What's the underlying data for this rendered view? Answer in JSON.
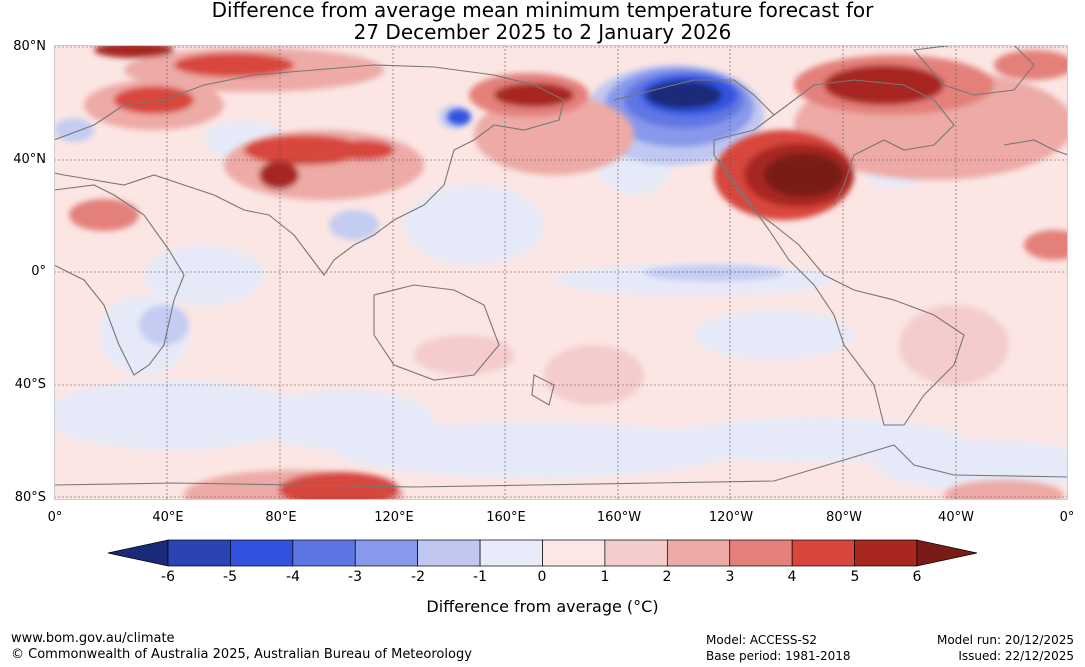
{
  "title": {
    "line1": "Difference from average mean minimum temperature forecast for",
    "line2": "27 December 2025 to 2 January 2026"
  },
  "lat_labels": [
    "80°N",
    "40°N",
    "0°",
    "40°S",
    "80°S"
  ],
  "lon_labels": [
    "0°",
    "40°E",
    "80°E",
    "120°E",
    "160°E",
    "160°W",
    "120°W",
    "80°W",
    "40°W",
    "0°"
  ],
  "colorbar": {
    "ticks": [
      "-6",
      "-5",
      "-4",
      "-3",
      "-2",
      "-1",
      "0",
      "1",
      "2",
      "3",
      "4",
      "5",
      "6"
    ],
    "colors": [
      "#1a2a7a",
      "#2a44b4",
      "#3352e0",
      "#5e76e4",
      "#8898ea",
      "#c0c8f2",
      "#e8ecfa",
      "#fbe8e6",
      "#f4cccc",
      "#edaaa6",
      "#e4807a",
      "#d8463e",
      "#a82820",
      "#7a1c16"
    ],
    "label": "Difference from average (°C)"
  },
  "footer": {
    "url": "www.bom.gov.au/climate",
    "copyright": "© Commonwealth of Australia 2025, Australian Bureau of Meteorology",
    "model": "Model: ACCESS-S2",
    "base_period": "Base period: 1981-2018",
    "model_run": "Model run: 20/12/2025",
    "issued": "Issued: 22/12/2025"
  },
  "colors": {
    "coast": "#777777",
    "grid": "#555555"
  }
}
